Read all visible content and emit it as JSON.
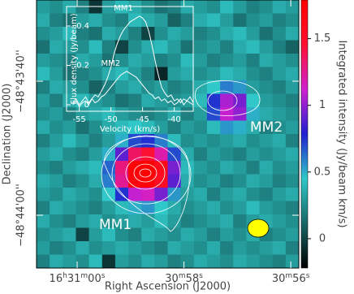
{
  "chart_data": [
    {
      "type": "heatmap",
      "xlabel": "Right Ascension (J2000)",
      "ylabel": "Declination (J2000)",
      "xlim": [
        60.76,
        55.85
      ],
      "xticks": [
        {
          "value": 60,
          "label": "16h31m00s"
        },
        {
          "value": 58,
          "label": "30m58s"
        },
        {
          "value": 56,
          "label": "30m56s"
        }
      ],
      "ylim": [
        -48.735522,
        -48.724411
      ],
      "yticks": [
        {
          "value": -48.727778,
          "label": "−48°43'40''"
        },
        {
          "value": -48.733333,
          "label": "−48°44'00''"
        }
      ],
      "annotations": [
        "MM1",
        "MM2"
      ],
      "colorbar": {
        "label": "Integrated intensity (Jy/beam km/s)",
        "lim": [
          -0.22,
          1.79
        ],
        "ticks": [
          0,
          0.5,
          1,
          1.5
        ],
        "colors": [
          "#000000",
          "#186868",
          "#30c8c8",
          "#2020d0",
          "#d020d0",
          "#ff1030",
          "#ff0000"
        ]
      },
      "values": [
        [
          0.3,
          0.25,
          0.35,
          0.2,
          -0.05,
          0.3,
          0.4,
          0.35,
          0.25,
          0.15,
          0.2,
          0.35,
          0.3,
          0.25,
          0.4,
          0.3,
          0.2,
          0.25,
          0.35,
          0.3
        ],
        [
          0.35,
          0.2,
          0.15,
          0.3,
          0.35,
          0.25,
          0.2,
          0.4,
          0.35,
          0.3,
          0.1,
          0.2,
          0.35,
          0.4,
          0.3,
          0.15,
          0.25,
          0.3,
          0.2,
          0.25
        ],
        [
          0.25,
          0.3,
          0.4,
          0.2,
          0.15,
          0.35,
          0.3,
          0.2,
          0.0,
          0.25,
          0.35,
          0.3,
          0.2,
          0.25,
          0.35,
          0.4,
          0.3,
          0.15,
          0.25,
          0.35
        ],
        [
          0.15,
          0.35,
          0.3,
          0.25,
          0.4,
          0.2,
          0.0,
          0.25,
          0.35,
          0.4,
          0.3,
          0.15,
          0.25,
          0.3,
          0.2,
          0.35,
          0.4,
          0.3,
          0.2,
          0.1
        ],
        [
          0.3,
          0.25,
          0.2,
          0.35,
          0.3,
          0.15,
          0.25,
          0.35,
          0.3,
          0.2,
          0.25,
          0.4,
          0.3,
          0.2,
          0.25,
          0.3,
          0.2,
          0.35,
          0.3,
          0.25
        ],
        [
          0.4,
          0.3,
          0.15,
          0.2,
          0.25,
          0.35,
          0.4,
          0.3,
          0.2,
          -0.1,
          0.3,
          0.35,
          0.25,
          0.3,
          0.4,
          0.35,
          0.25,
          0.2,
          0.3,
          0.35
        ],
        [
          0.2,
          0.35,
          0.3,
          0.25,
          0.1,
          0.2,
          0.3,
          0.35,
          0.25,
          0.3,
          0.2,
          0.25,
          0.35,
          0.45,
          0.6,
          0.55,
          0.3,
          0.25,
          0.2,
          0.3
        ],
        [
          0.3,
          0.2,
          0.35,
          0.4,
          0.3,
          0.25,
          0.15,
          0.2,
          0.35,
          0.3,
          0.25,
          0.3,
          0.4,
          0.75,
          1.05,
          0.95,
          0.45,
          0.3,
          0.25,
          0.2
        ],
        [
          0.25,
          0.3,
          0.2,
          0.3,
          0.35,
          0.4,
          0.3,
          0.25,
          0.2,
          0.25,
          0.35,
          0.2,
          0.3,
          0.7,
          1.1,
          1.0,
          0.5,
          0.35,
          0.3,
          0.25
        ],
        [
          0.35,
          0.25,
          0.3,
          0.15,
          0.25,
          0.35,
          0.4,
          0.45,
          0.4,
          0.3,
          0.2,
          0.3,
          0.25,
          0.4,
          0.55,
          0.5,
          0.35,
          0.2,
          0.25,
          0.3
        ],
        [
          0.2,
          0.3,
          0.4,
          0.3,
          0.2,
          0.3,
          0.5,
          0.7,
          0.75,
          0.6,
          0.4,
          0.25,
          0.3,
          0.25,
          0.3,
          0.35,
          0.25,
          0.3,
          0.35,
          0.2
        ],
        [
          0.3,
          0.35,
          0.25,
          0.2,
          0.3,
          0.5,
          0.9,
          1.35,
          1.45,
          1.2,
          0.7,
          0.35,
          0.2,
          0.3,
          0.25,
          0.2,
          0.3,
          0.25,
          0.3,
          0.35
        ],
        [
          0.25,
          0.2,
          0.3,
          0.35,
          0.4,
          0.65,
          1.3,
          1.75,
          1.8,
          1.6,
          0.95,
          0.4,
          0.3,
          0.25,
          0.35,
          0.3,
          0.2,
          0.35,
          0.25,
          0.3
        ],
        [
          0.35,
          0.3,
          0.2,
          0.25,
          0.35,
          0.6,
          1.25,
          1.7,
          1.75,
          1.55,
          0.9,
          0.35,
          0.25,
          0.3,
          0.2,
          0.25,
          0.35,
          0.3,
          0.2,
          0.25
        ],
        [
          0.3,
          0.25,
          0.35,
          0.3,
          0.25,
          0.45,
          0.75,
          1.1,
          1.15,
          0.95,
          0.55,
          0.3,
          0.35,
          0.2,
          0.3,
          0.35,
          0.25,
          0.2,
          0.3,
          0.35
        ],
        [
          0.2,
          0.35,
          0.3,
          0.25,
          0.2,
          0.3,
          0.4,
          0.5,
          0.55,
          0.45,
          0.35,
          0.25,
          0.3,
          0.35,
          0.25,
          0.3,
          0.4,
          0.3,
          0.25,
          0.2
        ],
        [
          0.35,
          0.25,
          0.2,
          0.3,
          0.35,
          0.25,
          0.3,
          0.35,
          0.3,
          0.4,
          0.3,
          0.2,
          0.25,
          0.3,
          0.35,
          0.2,
          0.3,
          0.35,
          0.3,
          0.25
        ],
        [
          0.25,
          0.3,
          0.35,
          0.0,
          0.3,
          0.4,
          0.25,
          0.2,
          0.35,
          0.3,
          0.25,
          0.35,
          0.3,
          0.2,
          0.3,
          0.25,
          0.35,
          0.2,
          0.25,
          0.3
        ],
        [
          0.3,
          0.2,
          0.25,
          0.35,
          0.25,
          0.3,
          0.35,
          0.3,
          0.25,
          0.2,
          0.35,
          0.3,
          0.25,
          0.35,
          0.2,
          0.3,
          0.25,
          0.3,
          0.35,
          0.2
        ],
        [
          0.2,
          0.35,
          0.3,
          0.25,
          0.4,
          -0.05,
          0.3,
          0.25,
          0.35,
          0.3,
          0.2,
          0.25,
          0.35,
          0.3,
          0.25,
          0.35,
          0.3,
          0.25,
          0.2,
          0.3
        ]
      ]
    },
    {
      "type": "line",
      "xlabel": "Velocity (km/s)",
      "ylabel": "Flux density (Jy/beam)",
      "xlim": [
        -57,
        -37
      ],
      "xticks": [
        -55,
        -50,
        -45,
        -40
      ],
      "ylim": [
        -0.033,
        0.499
      ],
      "yticks": [
        0,
        0.2,
        0.4
      ],
      "x": [
        -56,
        -55.5,
        -55,
        -54.5,
        -54,
        -53.5,
        -53,
        -52.5,
        -52,
        -51.5,
        -51,
        -50.5,
        -50,
        -49.5,
        -49,
        -48.5,
        -48,
        -47.5,
        -47,
        -46.5,
        -46,
        -45.5,
        -45,
        -44.5,
        -44,
        -43.5,
        -43,
        -42.5,
        -42,
        -41.5,
        -41,
        -40.5,
        -40,
        -39.5,
        -39,
        -38.5,
        -38,
        -37.5,
        -37
      ],
      "series": [
        {
          "name": "MM1",
          "color": "#ffffff",
          "values": [
            0.01,
            0.03,
            0.0,
            0.02,
            0.04,
            0.01,
            0.03,
            0.05,
            0.04,
            0.07,
            0.1,
            0.14,
            0.19,
            0.26,
            0.31,
            0.35,
            0.38,
            0.4,
            0.42,
            0.43,
            0.44,
            0.45,
            0.44,
            0.42,
            0.37,
            0.3,
            0.22,
            0.15,
            0.09,
            0.06,
            0.04,
            0.05,
            0.02,
            0.03,
            0.01,
            0.03,
            0.02,
            0.04,
            0.01
          ]
        },
        {
          "name": "MM2",
          "color": "#ffffff",
          "values": [
            0.0,
            0.02,
            -0.01,
            0.01,
            0.02,
            0.0,
            0.03,
            0.01,
            0.02,
            0.04,
            0.05,
            0.07,
            0.09,
            0.11,
            0.13,
            0.15,
            0.16,
            0.17,
            0.16,
            0.15,
            0.14,
            0.12,
            0.1,
            0.08,
            0.06,
            0.05,
            0.03,
            0.04,
            0.02,
            0.03,
            0.01,
            0.02,
            0.0,
            0.01,
            0.03,
            0.0,
            0.02,
            0.01,
            0.0
          ]
        }
      ]
    }
  ]
}
